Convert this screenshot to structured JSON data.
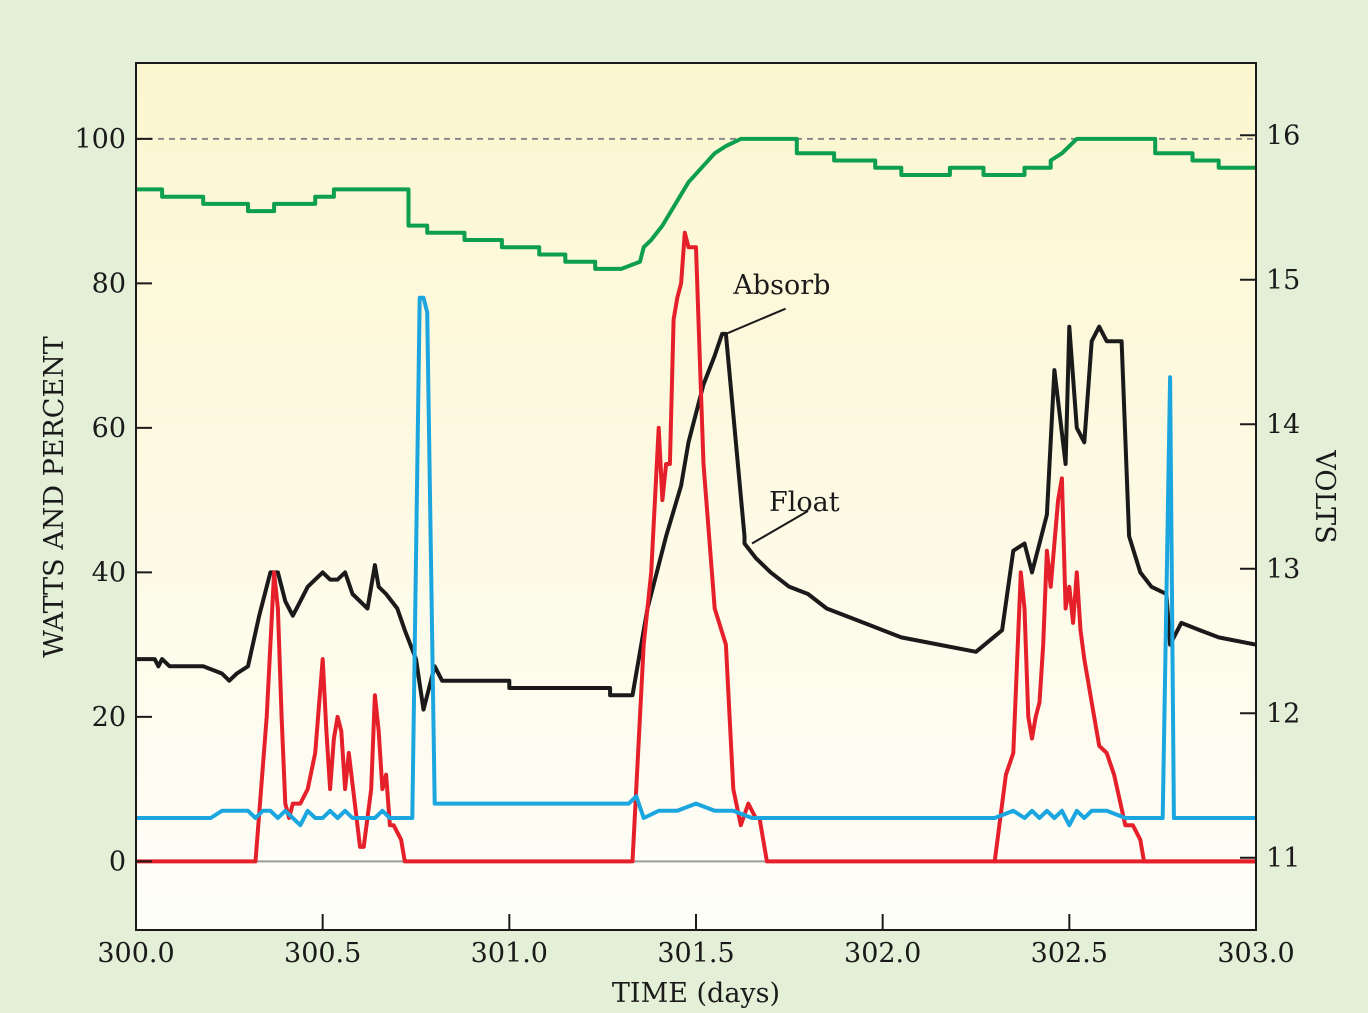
{
  "chart_data": {
    "type": "line",
    "xlabel": "TIME (days)",
    "ylabel_left": "WATTS AND PERCENT",
    "ylabel_right": "VOLTS",
    "xlim": [
      300.0,
      303.0
    ],
    "ylim_left": [
      -9.5,
      110.5
    ],
    "ylim_right": [
      10.5,
      16.5
    ],
    "x_ticks": [
      300.0,
      300.5,
      301.0,
      301.5,
      302.0,
      302.5,
      303.0
    ],
    "x_tick_labels": [
      "300.0",
      "300.5",
      "301.0",
      "301.5",
      "302.0",
      "302.5",
      "303.0"
    ],
    "y_left_ticks": [
      0,
      20,
      40,
      60,
      80,
      100
    ],
    "y_left_tick_labels": [
      "0",
      "20",
      "40",
      "60",
      "80",
      "100"
    ],
    "y_right_ticks": [
      11,
      12,
      13,
      14,
      15,
      16
    ],
    "y_right_tick_labels": [
      "11",
      "12",
      "13",
      "14",
      "15",
      "16"
    ],
    "reference_lines": [
      {
        "y": 100,
        "style": "dashed",
        "color": "#8a8a8a"
      },
      {
        "y": 0,
        "style": "solid",
        "color": "#9a9a9a"
      }
    ],
    "annotations": [
      {
        "text": "Absorb",
        "x": 301.73,
        "y": 78.5,
        "pointer_from": [
          301.74,
          76.5
        ],
        "pointer_to": [
          301.58,
          73
        ]
      },
      {
        "text": "Float",
        "x": 301.79,
        "y": 48.5,
        "pointer_from": [
          301.8,
          48.5
        ],
        "pointer_to": [
          301.65,
          44
        ]
      }
    ],
    "colors": {
      "plot_background_top": "#fcf6cf",
      "plot_background_bottom": "#fefef9",
      "page_background": "#e4efd8",
      "black_series": "#1a1a1a",
      "red_series": "#e5202a",
      "blue_series": "#1ba6e0",
      "green_series": "#0d9f4f"
    },
    "series": [
      {
        "color": "#0d9f4f",
        "axis": "left",
        "x": [
          300.0,
          300.07,
          300.07,
          300.18,
          300.18,
          300.3,
          300.3,
          300.37,
          300.37,
          300.48,
          300.48,
          300.53,
          300.53,
          300.67,
          300.73,
          300.73,
          300.78,
          300.78,
          300.88,
          300.88,
          300.98,
          300.98,
          301.08,
          301.08,
          301.15,
          301.15,
          301.23,
          301.23,
          301.3,
          301.3,
          301.35,
          301.36,
          301.38,
          301.41,
          301.48,
          301.55,
          301.58,
          301.62,
          301.62,
          301.77,
          301.77,
          301.87,
          301.87,
          301.98,
          301.98,
          302.05,
          302.05,
          302.18,
          302.18,
          302.27,
          302.27,
          302.38,
          302.38,
          302.45,
          302.45,
          302.48,
          302.52,
          302.55,
          302.7,
          302.73,
          302.73,
          302.83,
          302.83,
          302.9,
          302.9,
          303.0
        ],
        "y": [
          93,
          93,
          92,
          92,
          91,
          91,
          90,
          90,
          91,
          91,
          92,
          92,
          93,
          93,
          93,
          88,
          88,
          87,
          87,
          86,
          86,
          85,
          85,
          84,
          84,
          83,
          83,
          82,
          82,
          82,
          83,
          85,
          86,
          88,
          94,
          98,
          99,
          100,
          100,
          100,
          98,
          98,
          97,
          97,
          96,
          96,
          95,
          95,
          96,
          96,
          95,
          95,
          96,
          96,
          97,
          98,
          100,
          100,
          100,
          100,
          98,
          98,
          97,
          97,
          96,
          96
        ]
      },
      {
        "color": "#1a1a1a",
        "axis": "left",
        "x": [
          300.0,
          300.05,
          300.06,
          300.07,
          300.09,
          300.18,
          300.23,
          300.25,
          300.27,
          300.3,
          300.33,
          300.36,
          300.38,
          300.4,
          300.42,
          300.44,
          300.46,
          300.48,
          300.5,
          300.52,
          300.54,
          300.56,
          300.58,
          300.62,
          300.64,
          300.65,
          300.67,
          300.7,
          300.72,
          300.75,
          300.77,
          300.8,
          300.82,
          301.0,
          301.0,
          301.27,
          301.27,
          301.33,
          301.37,
          301.42,
          301.46,
          301.48,
          301.52,
          301.55,
          301.57,
          301.58,
          301.63,
          301.63,
          301.66,
          301.7,
          301.75,
          301.8,
          301.85,
          301.95,
          302.05,
          302.15,
          302.25,
          302.32,
          302.35,
          302.38,
          302.4,
          302.42,
          302.44,
          302.46,
          302.49,
          302.5,
          302.52,
          302.54,
          302.56,
          302.58,
          302.6,
          302.64,
          302.66,
          302.69,
          302.72,
          302.76,
          302.77,
          302.8,
          302.85,
          302.9,
          303.0
        ],
        "y": [
          28,
          28,
          27,
          28,
          27,
          27,
          26,
          25,
          26,
          27,
          34,
          40,
          40,
          36,
          34,
          36,
          38,
          39,
          40,
          39,
          39,
          40,
          37,
          35,
          41,
          38,
          37,
          35,
          32,
          28,
          21,
          27,
          25,
          25,
          24,
          24,
          23,
          23,
          35,
          45,
          52,
          58,
          66,
          70,
          73,
          73,
          45,
          44,
          42,
          40,
          38,
          37,
          35,
          33,
          31,
          30,
          29,
          32,
          43,
          44,
          40,
          44,
          48,
          68,
          55,
          74,
          60,
          58,
          72,
          74,
          72,
          72,
          45,
          40,
          38,
          37,
          30,
          33,
          32,
          31,
          30
        ]
      },
      {
        "color": "#e5202a",
        "axis": "left",
        "x": [
          300.0,
          300.32,
          300.35,
          300.36,
          300.37,
          300.38,
          300.39,
          300.4,
          300.41,
          300.42,
          300.44,
          300.46,
          300.48,
          300.5,
          300.51,
          300.52,
          300.53,
          300.54,
          300.55,
          300.56,
          300.57,
          300.6,
          300.61,
          300.63,
          300.64,
          300.65,
          300.66,
          300.67,
          300.68,
          300.69,
          300.71,
          300.72,
          300.73,
          301.33,
          301.36,
          301.38,
          301.4,
          301.41,
          301.42,
          301.43,
          301.44,
          301.45,
          301.46,
          301.47,
          301.48,
          301.5,
          301.51,
          301.52,
          301.55,
          301.58,
          301.6,
          301.62,
          301.64,
          301.66,
          301.67,
          301.69,
          303.0
        ],
        "y": [
          0,
          0,
          20,
          30,
          40,
          35,
          20,
          8,
          6,
          8,
          8,
          10,
          15,
          28,
          18,
          10,
          17,
          20,
          18,
          10,
          15,
          2,
          2,
          10,
          23,
          18,
          10,
          12,
          5,
          5,
          3,
          0,
          0,
          0,
          30,
          40,
          60,
          50,
          55,
          55,
          75,
          78,
          80,
          87,
          85,
          85,
          70,
          55,
          35,
          30,
          10,
          5,
          8,
          6,
          6,
          0,
          0
        ]
      },
      {
        "color": "#e5202a",
        "axis": "left",
        "x": [
          302.3,
          302.33,
          302.35,
          302.37,
          302.38,
          302.39,
          302.4,
          302.41,
          302.42,
          302.43,
          302.44,
          302.45,
          302.46,
          302.47,
          302.48,
          302.49,
          302.5,
          302.51,
          302.52,
          302.53,
          302.54,
          302.55,
          302.56,
          302.58,
          302.6,
          302.62,
          302.65,
          302.67,
          302.69,
          302.7,
          302.72,
          303.0
        ],
        "y": [
          0,
          12,
          15,
          40,
          35,
          20,
          17,
          20,
          22,
          30,
          43,
          38,
          44,
          50,
          53,
          35,
          38,
          33,
          40,
          32,
          28,
          25,
          22,
          16,
          15,
          12,
          5,
          5,
          3,
          0,
          0,
          0
        ]
      },
      {
        "color": "#1ba6e0",
        "axis": "left",
        "x": [
          300.0,
          300.1,
          300.2,
          300.23,
          300.26,
          300.28,
          300.3,
          300.32,
          300.34,
          300.36,
          300.38,
          300.4,
          300.42,
          300.44,
          300.46,
          300.48,
          300.5,
          300.52,
          300.54,
          300.56,
          300.58,
          300.6,
          300.62,
          300.64,
          300.66,
          300.68,
          300.7,
          300.72,
          300.74,
          300.76,
          300.77,
          300.78,
          300.8,
          300.82,
          300.85,
          301.0,
          301.32,
          301.34,
          301.36,
          301.4,
          301.45,
          301.5,
          301.55,
          301.6,
          301.65,
          301.7,
          302.0,
          302.3,
          302.35,
          302.38,
          302.4,
          302.42,
          302.44,
          302.46,
          302.48,
          302.5,
          302.52,
          302.54,
          302.56,
          302.6,
          302.65,
          302.7,
          302.75,
          302.77,
          302.78,
          302.8,
          302.82,
          302.85,
          302.9,
          303.0
        ],
        "y": [
          6,
          6,
          6,
          7,
          7,
          7,
          7,
          6,
          7,
          7,
          6,
          7,
          6,
          5,
          7,
          6,
          6,
          7,
          6,
          7,
          6,
          6,
          6,
          6,
          7,
          6,
          6,
          6,
          6,
          78,
          78,
          76,
          8,
          8,
          8,
          8,
          8,
          9,
          6,
          7,
          7,
          8,
          7,
          7,
          6,
          6,
          6,
          6,
          7,
          6,
          7,
          6,
          7,
          6,
          7,
          5,
          7,
          6,
          7,
          7,
          6,
          6,
          6,
          67,
          6,
          6,
          6,
          6,
          6,
          6
        ]
      }
    ]
  }
}
